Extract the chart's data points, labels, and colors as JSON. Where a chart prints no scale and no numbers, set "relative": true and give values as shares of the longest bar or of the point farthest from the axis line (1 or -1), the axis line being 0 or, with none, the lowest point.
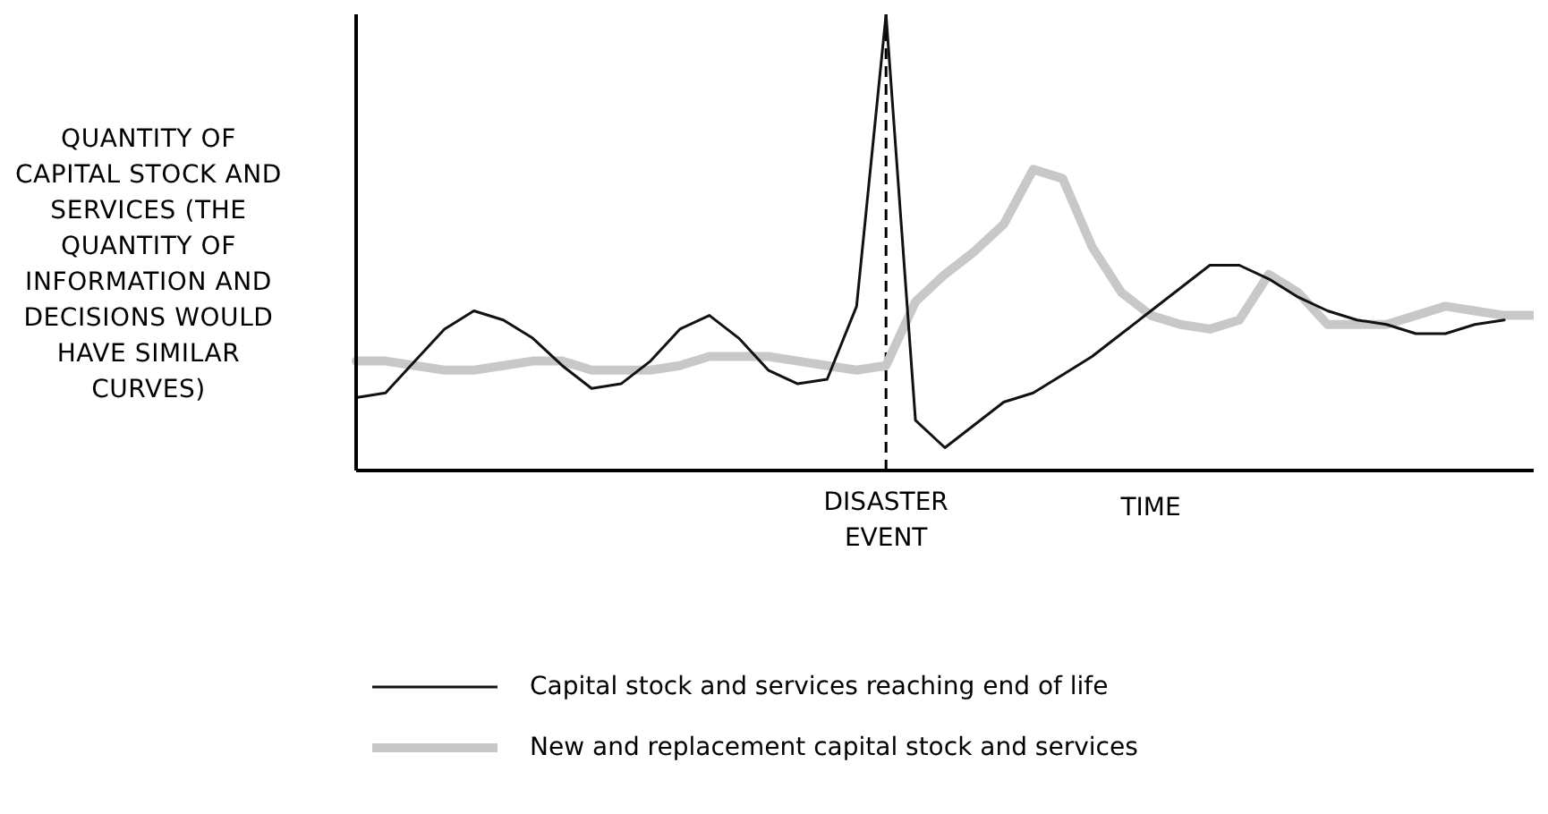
{
  "chart_data": {
    "type": "line",
    "relative": true,
    "xlabel": "TIME",
    "ylabel": "QUANTITY OF CAPITAL STOCK AND SERVICES (THE QUANTITY OF INFORMATION AND DECISIONS WOULD HAVE SIMILAR CURVES)",
    "grid": false,
    "legend": "bottom",
    "marker": "none",
    "line_style": "solid",
    "categories": [
      null,
      null,
      null,
      null,
      null,
      null,
      null,
      null,
      null,
      null,
      null,
      null,
      null,
      null,
      null,
      null,
      null,
      null,
      null,
      null,
      null,
      null,
      null,
      null,
      null,
      null,
      null,
      null,
      null,
      null,
      null,
      null,
      null,
      null,
      null,
      null,
      null,
      null,
      null,
      null,
      null
    ],
    "annotations": [
      "DISASTER EVENT"
    ],
    "series": [
      {
        "name": "Capital stock and services reaching end of life",
        "color": "#111111",
        "values": [
          0.16,
          0.17,
          0.24,
          0.31,
          0.35,
          0.33,
          0.29,
          0.23,
          0.18,
          0.19,
          0.24,
          0.31,
          0.34,
          0.29,
          0.22,
          0.19,
          0.2,
          0.36,
          1,
          0.11,
          0.05,
          0.1,
          0.15,
          0.17,
          0.21,
          0.25,
          0.3,
          0.35,
          0.4,
          0.45,
          0.45,
          0.42,
          0.38,
          0.35,
          0.33,
          0.32,
          0.3,
          0.3,
          0.32,
          0.33,
          null
        ]
      },
      {
        "name": "New and replacement capital stock and services",
        "color": "#c8c8c8",
        "values": [
          0.24,
          0.24,
          0.23,
          0.22,
          0.22,
          0.23,
          0.24,
          0.24,
          0.22,
          0.22,
          0.22,
          0.23,
          0.25,
          0.25,
          0.25,
          0.24,
          0.23,
          0.22,
          0.23,
          0.37,
          0.43,
          0.48,
          0.54,
          0.66,
          0.64,
          0.49,
          0.39,
          0.34,
          0.32,
          0.31,
          0.33,
          0.43,
          0.39,
          0.32,
          0.32,
          0.32,
          0.34,
          0.36,
          0.35,
          0.34,
          0.34
        ]
      }
    ]
  }
}
